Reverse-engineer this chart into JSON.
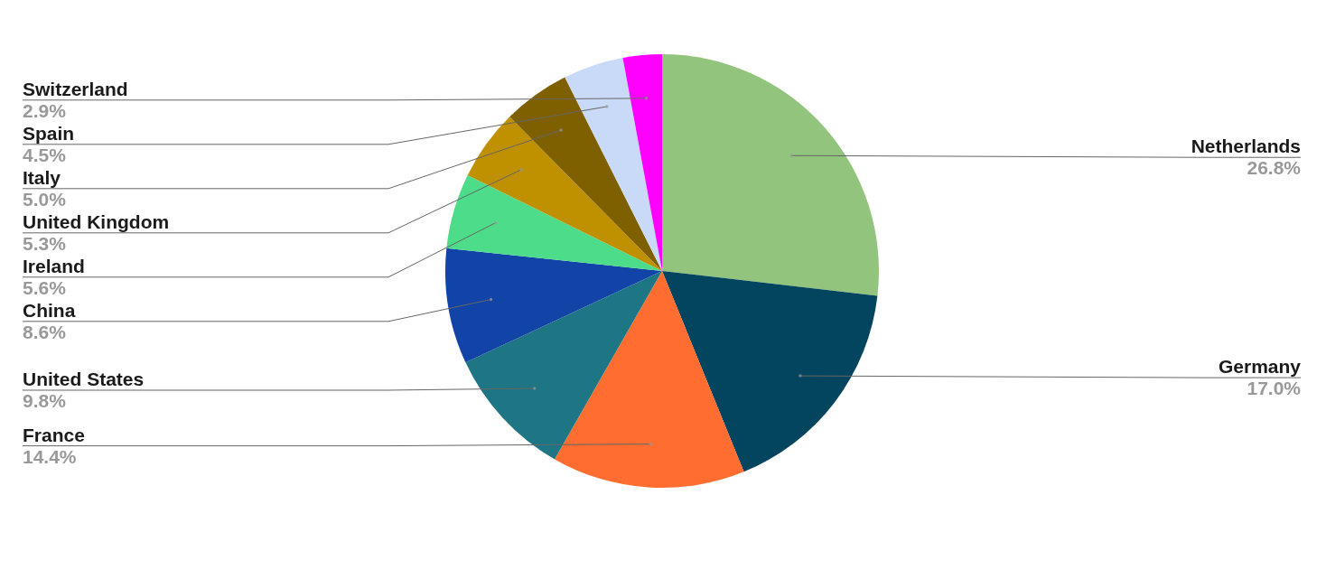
{
  "chart_data": {
    "type": "pie",
    "categories": [
      "Netherlands",
      "Germany",
      "France",
      "United States",
      "China",
      "Ireland",
      "United Kingdom",
      "Italy",
      "Spain",
      "Switzerland"
    ],
    "values": [
      26.8,
      17.0,
      14.4,
      9.8,
      8.6,
      5.6,
      5.3,
      5.0,
      4.5,
      2.9
    ],
    "value_labels": [
      "26.8%",
      "17.0%",
      "14.4%",
      "9.8%",
      "8.6%",
      "5.6%",
      "5.3%",
      "5.0%",
      "4.5%",
      "2.9%"
    ],
    "colors": [
      "#93c47d",
      "#03445e",
      "#ff6d31",
      "#1e7584",
      "#1244a8",
      "#4ddc89",
      "#bf9000",
      "#7f6000",
      "#c9daf8",
      "#ff00ff"
    ]
  }
}
